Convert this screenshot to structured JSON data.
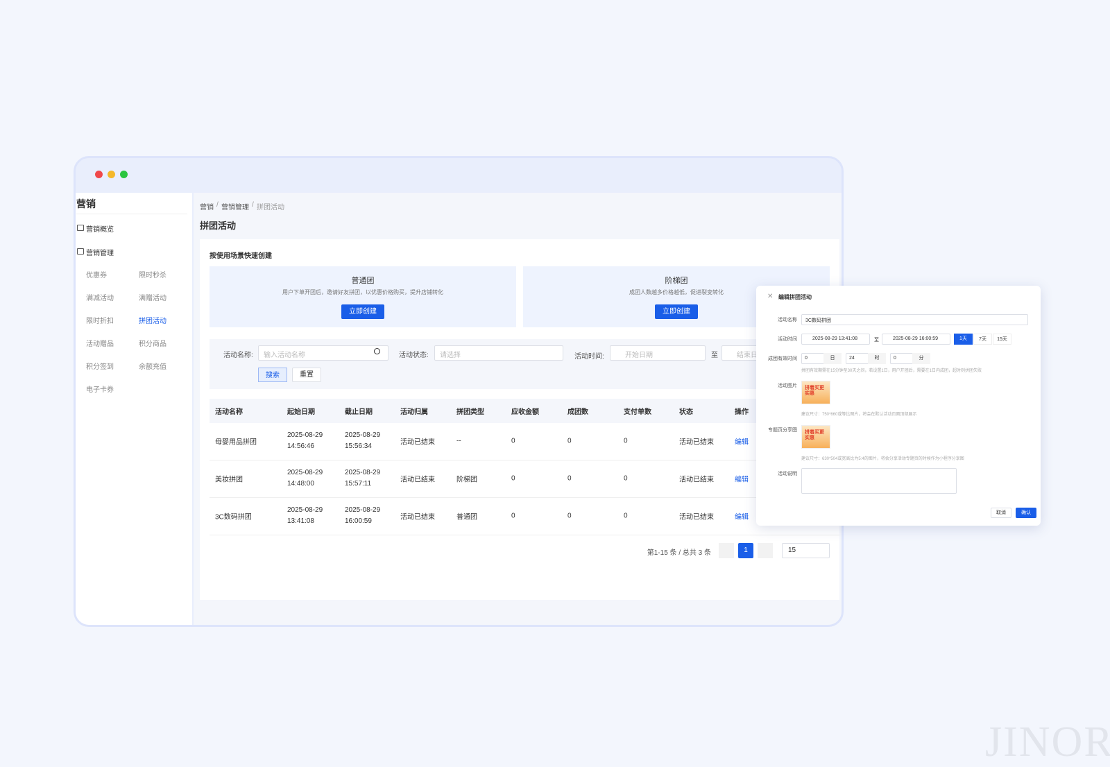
{
  "sidebar": {
    "title": "营销",
    "items": [
      "营销概览",
      "营销管理"
    ],
    "submenu": [
      "优惠券",
      "限时秒杀",
      "满减活动",
      "满赠活动",
      "限时折扣",
      "拼团活动",
      "活动赠品",
      "积分商品",
      "积分签到",
      "余额充值",
      "电子卡券"
    ]
  },
  "breadcrumb": {
    "items": [
      "营销",
      "营销管理",
      "拼团活动"
    ],
    "separator": "/"
  },
  "page_title": "拼团活动",
  "quick_create": {
    "title": "按使用场景快速创建",
    "cards": [
      {
        "title": "普通团",
        "desc": "用户下单开团后，邀请好友拼团，以优惠价格购买，提升店铺转化",
        "button": "立即创建"
      },
      {
        "title": "阶梯团",
        "desc": "成团人数越多价格越低，促进裂变转化",
        "button": "立即创建"
      }
    ]
  },
  "filters": {
    "name_label": "活动名称:",
    "name_placeholder": "输入活动名称",
    "status_label": "活动状态:",
    "status_placeholder": "请选择",
    "time_label": "活动时间:",
    "start_placeholder": "开始日期",
    "to": "至",
    "end_placeholder": "结束日期",
    "search": "搜索",
    "reset": "重置"
  },
  "table": {
    "columns": [
      "活动名称",
      "起始日期",
      "截止日期",
      "活动归属",
      "拼团类型",
      "应收金额",
      "成团数",
      "支付单数",
      "状态",
      "操作"
    ],
    "rows": [
      [
        "母婴用品拼团",
        "2025-08-29 14:56:46",
        "2025-08-29 15:56:34",
        "活动已结束",
        "--",
        0,
        0,
        0,
        "活动已结束",
        "编辑"
      ],
      [
        "美妆拼团",
        "2025-08-29 14:48:00",
        "2025-08-29 15:57:11",
        "活动已结束",
        "阶梯团",
        0,
        0,
        0,
        "活动已结束",
        "编辑"
      ],
      [
        "3C数码拼团",
        "2025-08-29 13:41:08",
        "2025-08-29 16:00:59",
        "活动已结束",
        "普通团",
        0,
        0,
        0,
        "活动已结束",
        "编辑"
      ]
    ]
  },
  "pagination": {
    "summary": "第1-15 条 / 总共 3 条",
    "current": 1,
    "page_size": 15
  },
  "modal": {
    "title": "编辑拼团活动",
    "name_label": "活动名称",
    "name_value": "3C数码拼团",
    "time_label": "活动时间",
    "start": "2025-08-29 13:41:08",
    "to": "至",
    "end": "2025-08-29 16:00:59",
    "quick_ranges": [
      "1天",
      "7天",
      "15天"
    ],
    "validity_label": "成团有效时间",
    "validity": [
      {
        "value": 0,
        "unit": "日"
      },
      {
        "value": 24,
        "unit": "时"
      },
      {
        "value": 0,
        "unit": "分"
      }
    ],
    "validity_hint": "拼团有效期需在15分钟至30天之间，若设置1日，用户开团后，需要在1日内成团，超时则拼团失败",
    "image_label": "活动图片",
    "image_text": "拼着买更实惠",
    "image_hint": "建议尺寸：750*660或等比图片，将会在默认活动页面顶部展示",
    "share_label": "专题页分享图",
    "share_text": "拼着买更实惠",
    "share_hint": "建议尺寸：630*504或宽高比为5:4的图片，将会分享活动专题页的时候作为小程序分享图",
    "desc_label": "活动说明",
    "cancel": "取消",
    "confirm": "确认"
  },
  "watermark": "JINOR"
}
